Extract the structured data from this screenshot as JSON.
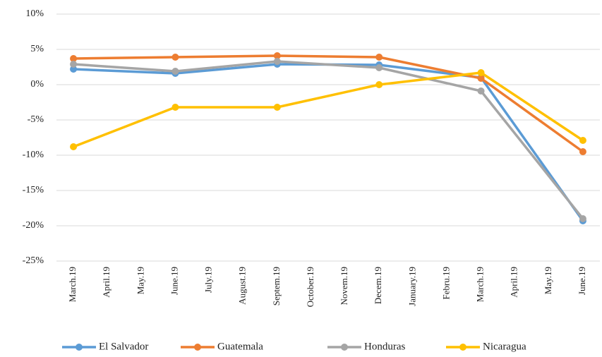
{
  "chart_data": {
    "type": "line",
    "categories": [
      "March.19",
      "April.19",
      "May.19",
      "June.19",
      "July.19",
      "August.19",
      "Septem.19",
      "October.19",
      "Novem.19",
      "Decem.19",
      "January.19",
      "Febru.19",
      "March.19",
      "April.19",
      "May.19",
      "June.19"
    ],
    "series": [
      {
        "name": "El Salvador",
        "color": "#5b9bd5",
        "values": [
          2.2,
          null,
          null,
          1.6,
          null,
          null,
          2.9,
          null,
          null,
          2.8,
          null,
          null,
          1.0,
          null,
          null,
          -19.3
        ]
      },
      {
        "name": "Guatemala",
        "color": "#ed7d31",
        "values": [
          3.7,
          null,
          null,
          3.9,
          null,
          null,
          4.1,
          null,
          null,
          3.9,
          null,
          null,
          0.9,
          null,
          null,
          -9.5
        ]
      },
      {
        "name": "Honduras",
        "color": "#a5a5a5",
        "values": [
          2.9,
          null,
          null,
          1.9,
          null,
          null,
          3.3,
          null,
          null,
          2.4,
          null,
          null,
          -0.9,
          null,
          null,
          -19.0
        ]
      },
      {
        "name": "Nicaragua",
        "color": "#ffc000",
        "values": [
          -8.8,
          null,
          null,
          -3.2,
          null,
          null,
          -3.2,
          null,
          null,
          0.0,
          null,
          null,
          1.7,
          null,
          null,
          -7.9
        ]
      }
    ],
    "ylim": [
      -25,
      10
    ],
    "yticks": [
      {
        "value": -25,
        "label": "-25%"
      },
      {
        "value": -20,
        "label": "-20%"
      },
      {
        "value": -15,
        "label": "-15%"
      },
      {
        "value": -10,
        "label": "-10%"
      },
      {
        "value": -5,
        "label": "-5%"
      },
      {
        "value": 0,
        "label": "0%"
      },
      {
        "value": 5,
        "label": "5%"
      },
      {
        "value": 10,
        "label": "10%"
      }
    ],
    "grid": true,
    "span_gaps": true,
    "legend": "bottom"
  }
}
